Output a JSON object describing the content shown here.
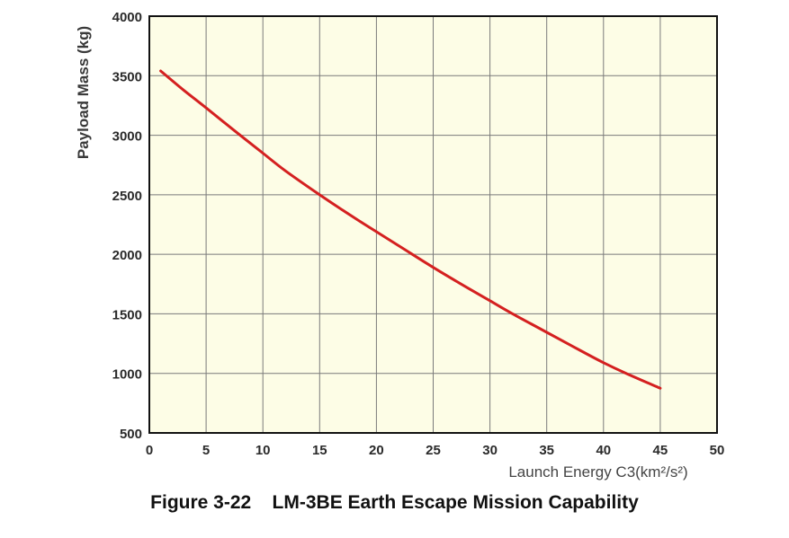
{
  "caption": "Figure 3-22    LM-3BE Earth Escape Mission Capability",
  "chart_data": {
    "type": "line",
    "ylabel": "Payload Mass (kg)",
    "xlabel": "Launch Energy C3(km²/s²)",
    "xlim": [
      0,
      50
    ],
    "ylim": [
      500,
      4000
    ],
    "x_ticks": [
      "0",
      "5",
      "10",
      "15",
      "20",
      "25",
      "30",
      "35",
      "40",
      "45",
      "50"
    ],
    "y_ticks": [
      "500",
      "1000",
      "1500",
      "2000",
      "2500",
      "3000",
      "3500",
      "4000"
    ],
    "grid": true,
    "background_color": "#fdfde6",
    "line_color": "#d42020",
    "series": [
      {
        "x": [
          1,
          3,
          5,
          8,
          10,
          12,
          15,
          18,
          20,
          22,
          25,
          28,
          30,
          32,
          35,
          38,
          40,
          42,
          45
        ],
        "y": [
          3540,
          3380,
          3230,
          3000,
          2850,
          2700,
          2500,
          2310,
          2190,
          2070,
          1890,
          1720,
          1610,
          1500,
          1345,
          1190,
          1090,
          1000,
          875
        ]
      }
    ]
  }
}
